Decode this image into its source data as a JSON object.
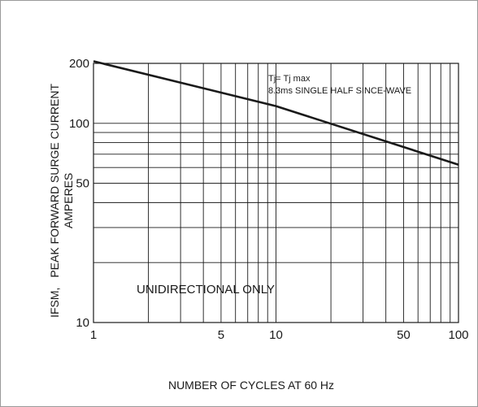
{
  "chart_data": {
    "type": "line",
    "x_scale": "log",
    "y_scale": "log",
    "xlim": [
      1,
      100
    ],
    "ylim": [
      10,
      200
    ],
    "x_ticks": [
      1,
      5,
      10,
      50,
      100
    ],
    "x_tick_labels": [
      "1",
      "5",
      "10",
      "50",
      "100"
    ],
    "y_ticks": [
      10,
      50,
      100,
      200
    ],
    "y_tick_labels": [
      "10",
      "50",
      "100",
      "200"
    ],
    "grid": true,
    "x_grid_values": [
      2,
      3,
      4,
      5,
      6,
      7,
      8,
      9,
      10,
      20,
      30,
      40,
      50,
      60,
      70,
      80,
      90
    ],
    "y_grid_values": [
      20,
      30,
      40,
      50,
      60,
      70,
      80,
      90,
      100
    ],
    "xlabel": "NUMBER OF CYCLES AT 60 Hz",
    "ylabel_prefix": "IFSM,",
    "ylabel_line1": "PEAK FORWARD SURGE CURRENT",
    "ylabel_line2": "AMPERES",
    "notes": [
      "Tj= Tj max",
      "8.3ms SINGLE HALF SINCE-WAVE"
    ],
    "annotation": "UNIDIRECTIONAL ONLY",
    "series": [
      {
        "x": [
          1,
          10,
          100
        ],
        "y": [
          205,
          122,
          62
        ]
      }
    ],
    "colors": {
      "line": "#1a1a1a",
      "grid": "#1a1a1a",
      "frame": "#9a9a9a"
    }
  }
}
